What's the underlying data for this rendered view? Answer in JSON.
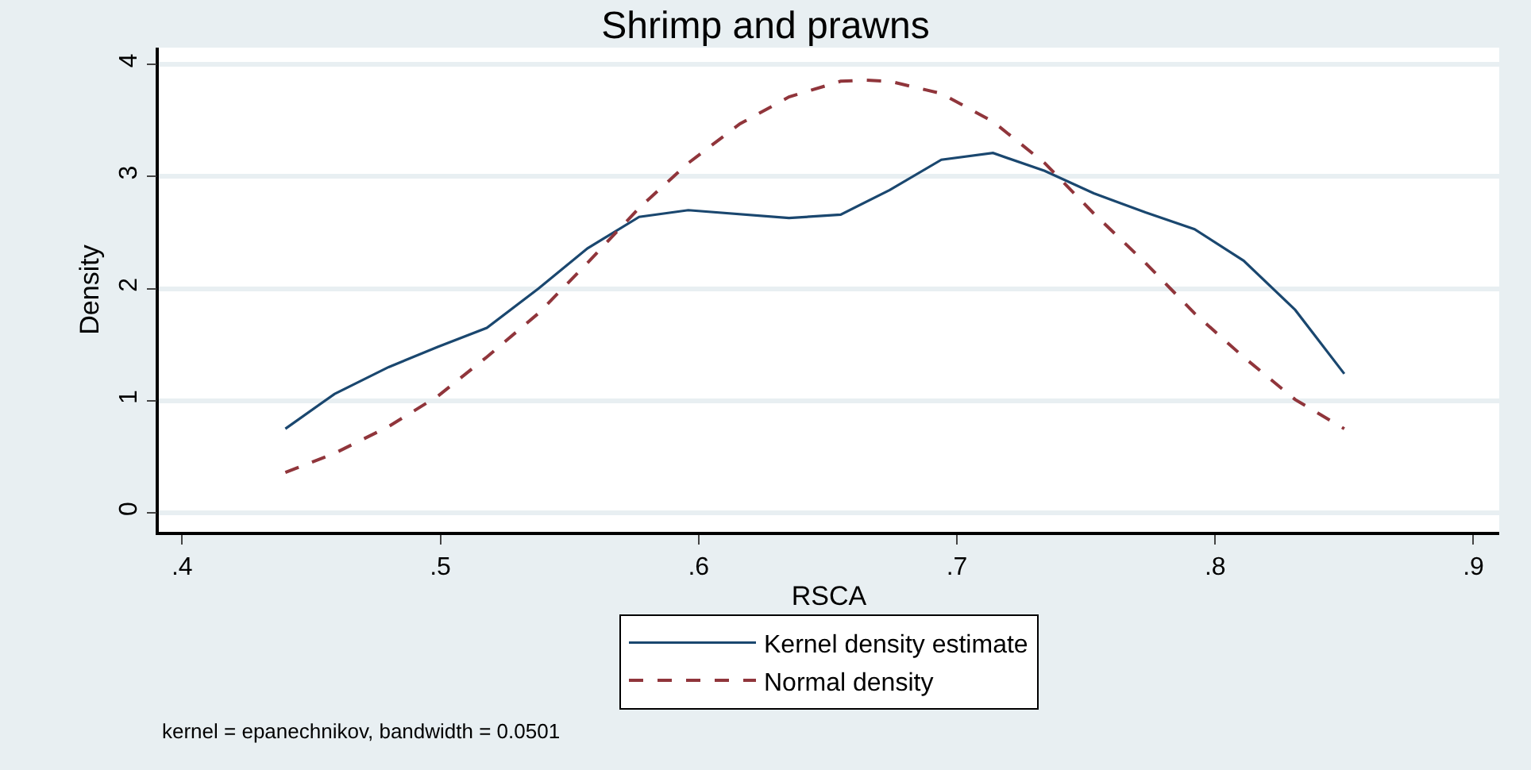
{
  "chart_data": {
    "type": "line",
    "title": "Shrimp and prawns",
    "xlabel": "RSCA",
    "ylabel": "Density",
    "xlim": [
      0.391,
      0.91
    ],
    "xticks": [
      {
        "value": 0.4,
        "label": ".4"
      },
      {
        "value": 0.5,
        "label": ".5"
      },
      {
        "value": 0.6,
        "label": ".6"
      },
      {
        "value": 0.7,
        "label": ".7"
      },
      {
        "value": 0.8,
        "label": ".8"
      },
      {
        "value": 0.9,
        "label": ".9"
      }
    ],
    "ylim": [
      -0.17,
      4.15
    ],
    "yticks": [
      0,
      1,
      2,
      3,
      4
    ],
    "grid": "y",
    "legend": "bottom",
    "x": [
      0.44,
      0.459,
      0.48,
      0.499,
      0.518,
      0.538,
      0.557,
      0.577,
      0.596,
      0.616,
      0.635,
      0.655,
      0.664,
      0.674,
      0.694,
      0.714,
      0.734,
      0.753,
      0.773,
      0.792,
      0.811,
      0.831,
      0.85
    ],
    "series": [
      {
        "name": "Kernel density estimate",
        "color": "#1a476f",
        "line_style": "solid",
        "x": [
          0.44,
          0.459,
          0.48,
          0.499,
          0.518,
          0.538,
          0.557,
          0.577,
          0.596,
          0.635,
          0.655,
          0.674,
          0.694,
          0.714,
          0.734,
          0.753,
          0.773,
          0.792,
          0.811,
          0.831,
          0.85
        ],
        "values": [
          0.75,
          1.06,
          1.3,
          1.48,
          1.65,
          2.0,
          2.36,
          2.64,
          2.7,
          2.63,
          2.66,
          2.88,
          3.15,
          3.21,
          3.05,
          2.85,
          2.68,
          2.53,
          2.25,
          1.81,
          1.24
        ]
      },
      {
        "name": "Normal density",
        "color": "#90353b",
        "line_style": "dashed",
        "values": [
          0.36,
          0.53,
          0.77,
          1.04,
          1.39,
          1.78,
          2.23,
          2.72,
          3.12,
          3.47,
          3.71,
          3.85,
          3.86,
          3.85,
          3.74,
          3.49,
          3.12,
          2.67,
          2.23,
          1.78,
          1.39,
          1.01,
          0.75
        ]
      }
    ],
    "annotations": [
      "kernel = epanechnikov, bandwidth = 0.0501"
    ]
  }
}
